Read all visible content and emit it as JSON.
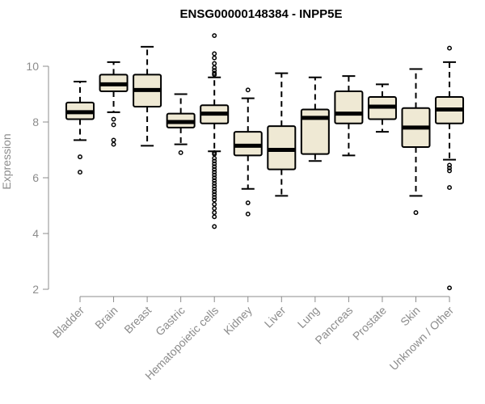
{
  "chart_data": {
    "type": "box",
    "title": "ENSG00000148384 - INPP5E",
    "xlabel": "",
    "ylabel": "Expression",
    "ylim": [
      2,
      11.2
    ],
    "yticks": [
      2,
      4,
      6,
      8,
      10
    ],
    "grid": false,
    "categories": [
      "Bladder",
      "Brain",
      "Breast",
      "Gastric",
      "Hematopoietic cells",
      "Kidney",
      "Liver",
      "Lung",
      "Pancreas",
      "Prostate",
      "Skin",
      "Unknown / Other"
    ],
    "boxes": [
      {
        "category": "Bladder",
        "whisker_low": 7.35,
        "q1": 8.1,
        "median": 8.35,
        "q3": 8.7,
        "whisker_high": 9.45,
        "outliers": [
          6.75,
          6.2
        ]
      },
      {
        "category": "Brain",
        "whisker_low": 8.35,
        "q1": 9.1,
        "median": 9.35,
        "q3": 9.7,
        "whisker_high": 10.15,
        "outliers": [
          8.1,
          7.9,
          7.35,
          7.2
        ]
      },
      {
        "category": "Breast",
        "whisker_low": 7.15,
        "q1": 8.55,
        "median": 9.15,
        "q3": 9.7,
        "whisker_high": 10.7,
        "outliers": []
      },
      {
        "category": "Gastric",
        "whisker_low": 7.2,
        "q1": 7.8,
        "median": 8.0,
        "q3": 8.3,
        "whisker_high": 9.0,
        "outliers": [
          6.9
        ]
      },
      {
        "category": "Hematopoietic cells",
        "whisker_low": 6.95,
        "q1": 7.95,
        "median": 8.3,
        "q3": 8.6,
        "whisker_high": 9.6,
        "outliers": [
          11.1,
          10.45,
          10.3,
          10.1,
          9.95,
          9.85,
          9.75,
          9.7,
          6.9,
          6.85,
          6.7,
          6.6,
          6.5,
          6.4,
          6.3,
          6.2,
          6.1,
          6.0,
          5.9,
          5.8,
          5.7,
          5.6,
          5.5,
          5.4,
          5.3,
          5.2,
          5.05,
          4.9,
          4.75,
          4.6,
          4.25
        ]
      },
      {
        "category": "Kidney",
        "whisker_low": 5.6,
        "q1": 6.8,
        "median": 7.15,
        "q3": 7.65,
        "whisker_high": 8.85,
        "outliers": [
          9.15,
          5.1,
          4.7
        ]
      },
      {
        "category": "Liver",
        "whisker_low": 5.35,
        "q1": 6.3,
        "median": 7.0,
        "q3": 7.85,
        "whisker_high": 9.75,
        "outliers": []
      },
      {
        "category": "Lung",
        "whisker_low": 6.6,
        "q1": 6.85,
        "median": 8.15,
        "q3": 8.45,
        "whisker_high": 9.6,
        "outliers": []
      },
      {
        "category": "Pancreas",
        "whisker_low": 6.8,
        "q1": 7.95,
        "median": 8.3,
        "q3": 9.1,
        "whisker_high": 9.65,
        "outliers": []
      },
      {
        "category": "Prostate",
        "whisker_low": 7.65,
        "q1": 8.1,
        "median": 8.55,
        "q3": 8.9,
        "whisker_high": 9.35,
        "outliers": []
      },
      {
        "category": "Skin",
        "whisker_low": 5.35,
        "q1": 7.1,
        "median": 7.8,
        "q3": 8.5,
        "whisker_high": 9.9,
        "outliers": [
          4.75
        ]
      },
      {
        "category": "Unknown / Other",
        "whisker_low": 6.65,
        "q1": 7.95,
        "median": 8.45,
        "q3": 8.9,
        "whisker_high": 10.15,
        "outliers": [
          10.65,
          6.45,
          6.35,
          6.25,
          5.65,
          2.05
        ]
      }
    ],
    "colors": {
      "box_fill": "#efe9d4",
      "box_stroke": "#000000",
      "axis": "#8c8c8c"
    }
  }
}
